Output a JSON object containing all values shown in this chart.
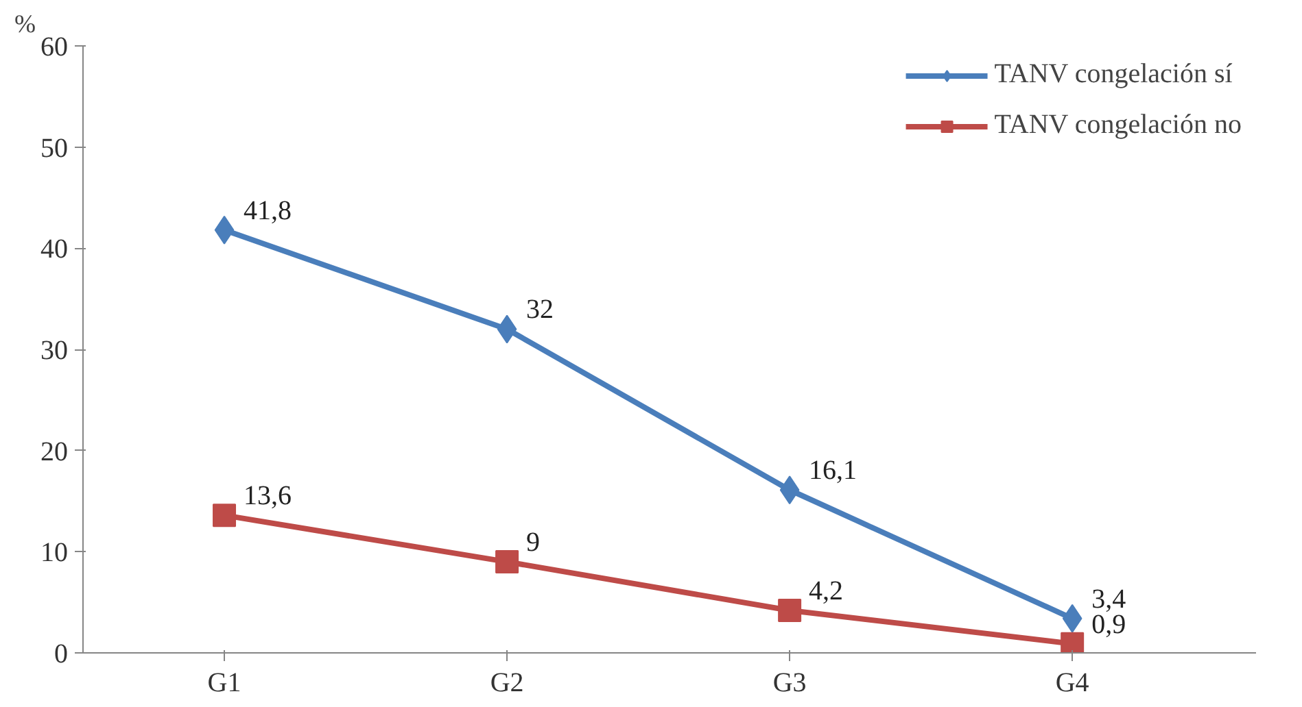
{
  "chart_data": {
    "type": "line",
    "ylabel": "%",
    "categories": [
      "G1",
      "G2",
      "G3",
      "G4"
    ],
    "series": [
      {
        "name": "TANV congelación sí",
        "color": "#4a7ebb",
        "marker": "diamond",
        "values": [
          41.8,
          32,
          16.1,
          3.4
        ],
        "value_labels": [
          "41,8",
          "32",
          "16,1",
          "3,4"
        ]
      },
      {
        "name": "TANV congelación no",
        "color": "#be4b48",
        "marker": "square",
        "values": [
          13.6,
          9,
          4.2,
          0.9
        ],
        "value_labels": [
          "13,6",
          "9",
          "4,2",
          "0,9"
        ]
      }
    ],
    "ylim": [
      0,
      60
    ],
    "yticks": [
      0,
      10,
      20,
      30,
      40,
      50,
      60
    ],
    "grid": false,
    "legend": "top right",
    "line_style": "solid"
  }
}
